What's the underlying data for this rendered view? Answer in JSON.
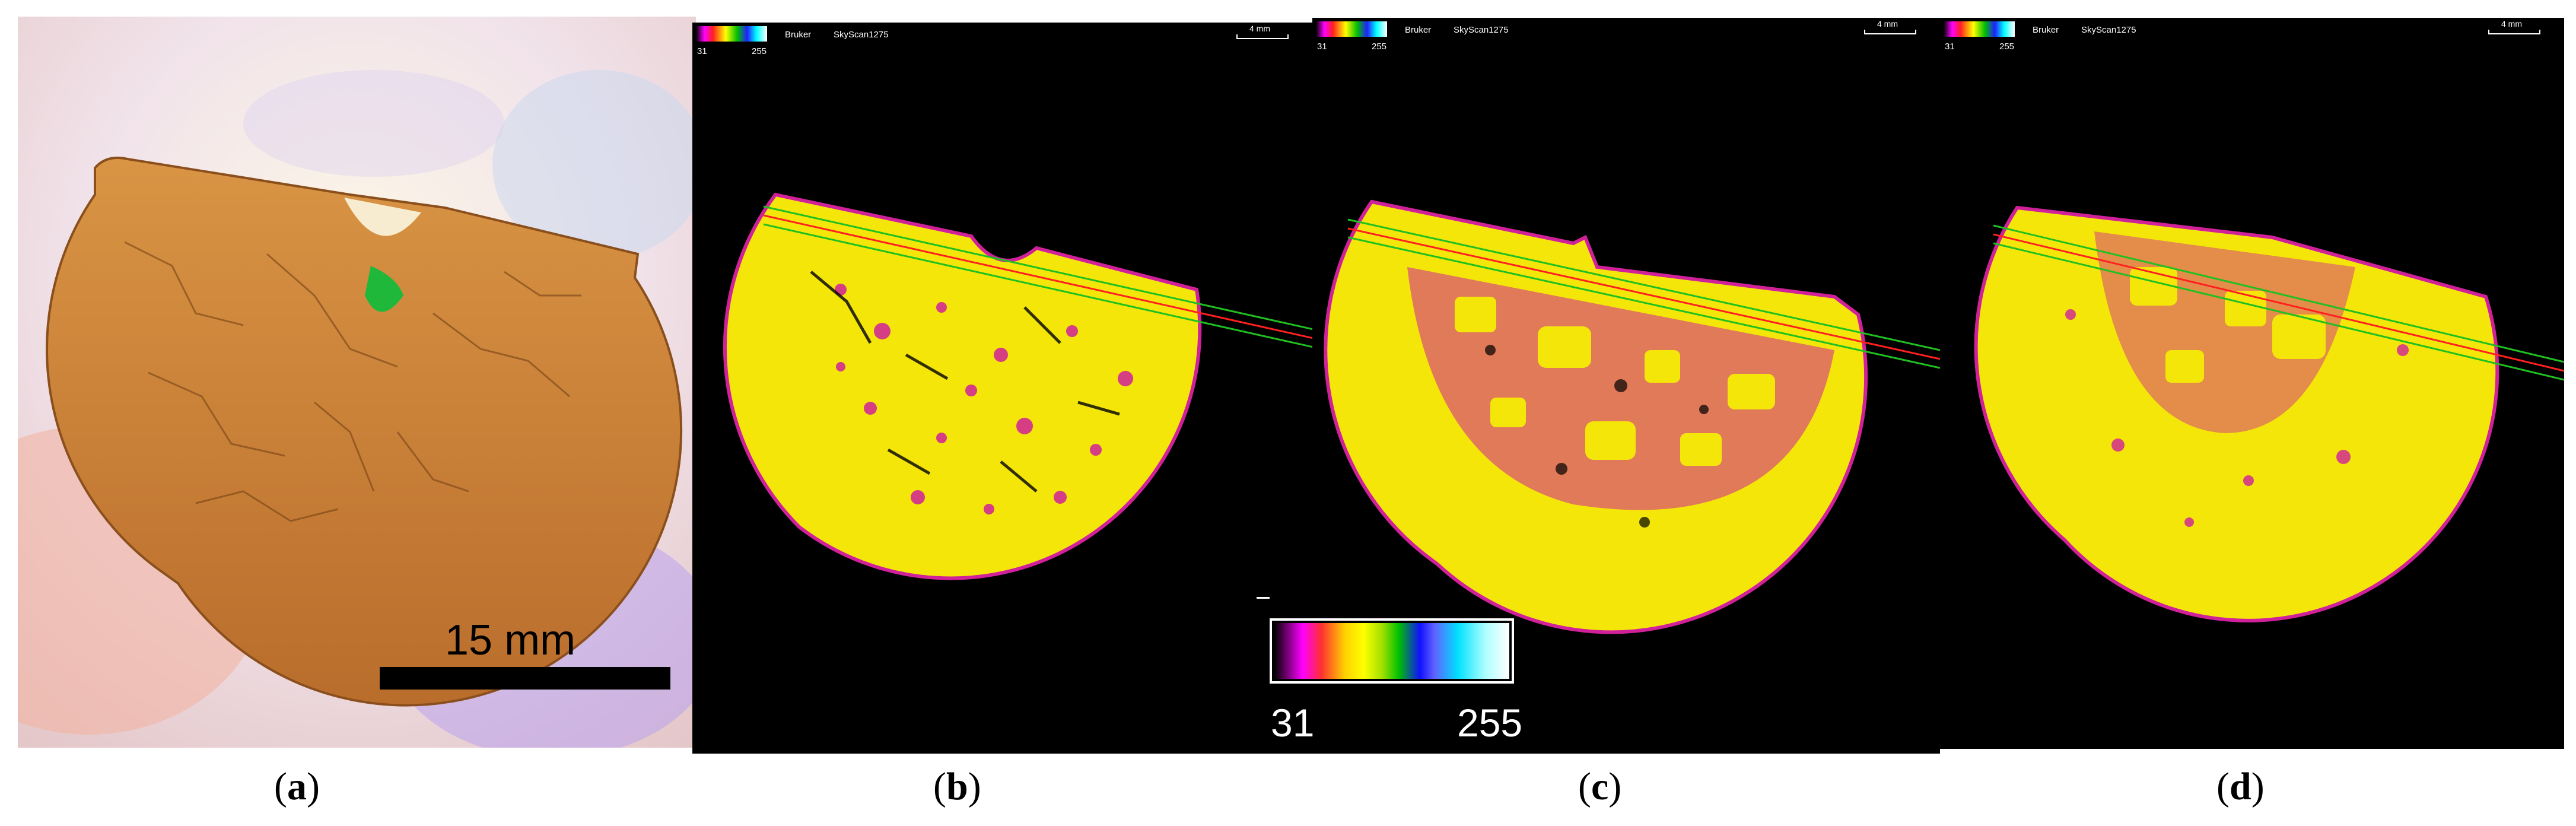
{
  "panels": {
    "a": {
      "caption_open": "(",
      "caption_letter": "a",
      "caption_close": ")",
      "scale_label": "15 mm"
    },
    "b": {
      "caption_open": "(",
      "caption_letter": "b",
      "caption_close": ")",
      "brand": "Bruker",
      "model": "SkyScan1275",
      "cbar_min": "31",
      "cbar_max": "255",
      "scale_label": "4 mm"
    },
    "c": {
      "caption_open": "(",
      "caption_letter": "c",
      "caption_close": ")",
      "brand": "Bruker",
      "model": "SkyScan1275",
      "cbar_min": "31",
      "cbar_max": "255",
      "scale_label": "4 mm"
    },
    "d": {
      "caption_open": "(",
      "caption_letter": "d",
      "caption_close": ")",
      "brand": "Bruker",
      "model": "SkyScan1275",
      "cbar_min": "31",
      "cbar_max": "255",
      "scale_label": "4 mm"
    }
  },
  "legend": {
    "min": "31",
    "max": "255"
  },
  "colors": {
    "specimen_photo": "#c9803a",
    "ct_solid": "#f5e60a",
    "ct_pore": "#d0209a",
    "ct_background": "#000000",
    "green_stain": "#1fb83a"
  }
}
